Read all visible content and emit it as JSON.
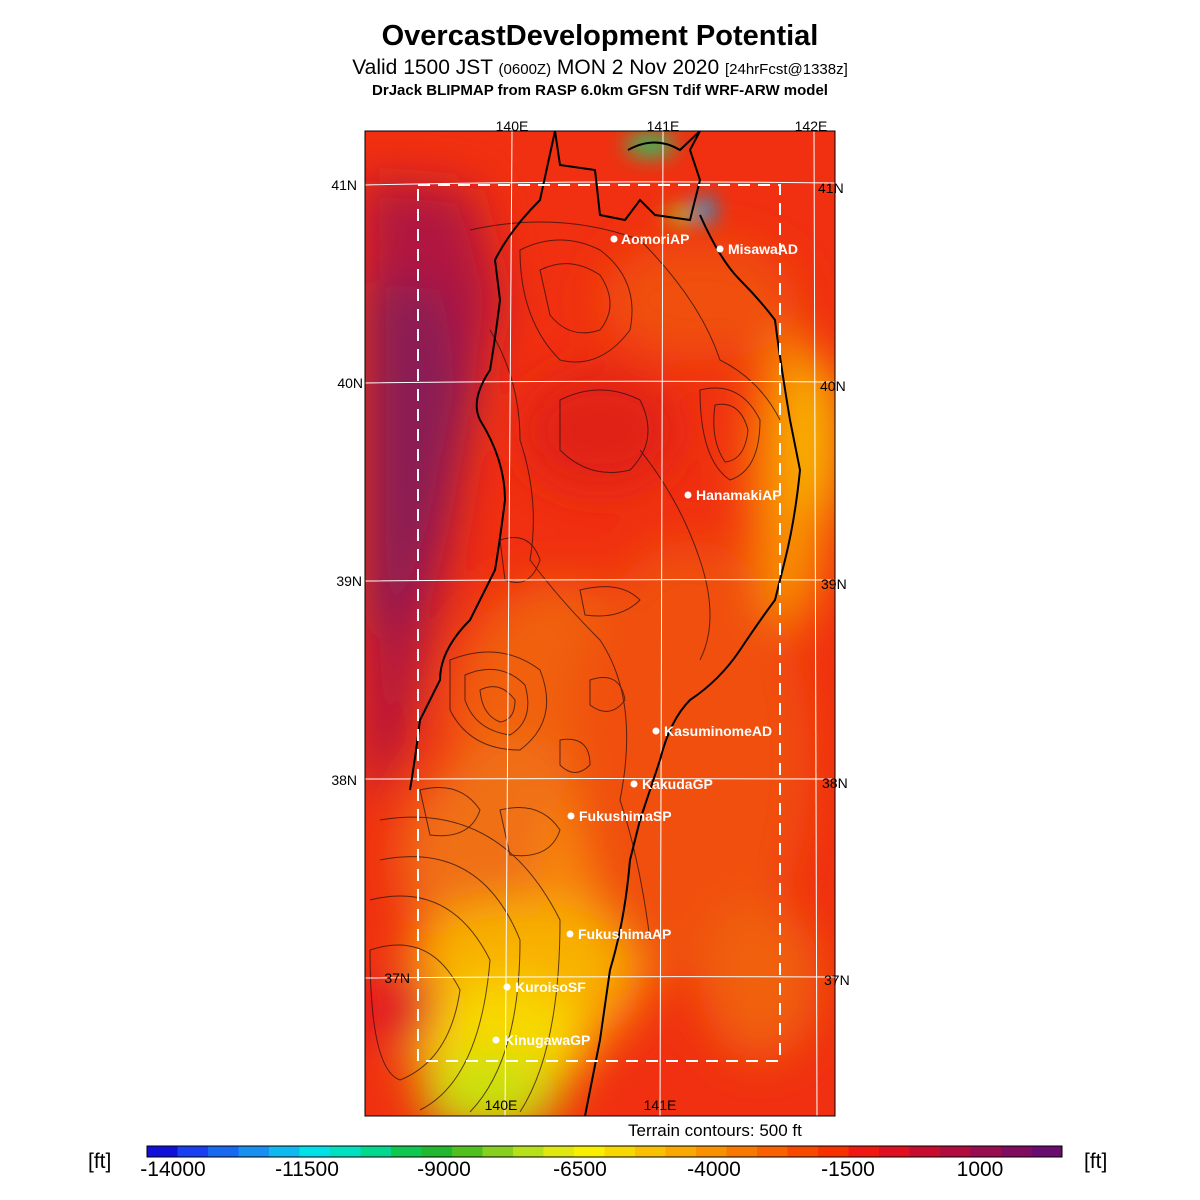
{
  "title": "OvercastDevelopment Potential",
  "subtitle": {
    "part1": "Valid 1500 JST ",
    "part2": "(0600Z)",
    "part3": " MON 2 Nov 2020 ",
    "part4": "[24hrFcst@1338z]"
  },
  "model_line": "DrJack BLIPMAP from RASP 6.0km GFSN Tdif WRF-ARW model",
  "map": {
    "lon_top": [
      "140E",
      "141E",
      "142E"
    ],
    "lon_bottom": [
      "140E",
      "141E"
    ],
    "lat_left": [
      "41N",
      "40N",
      "39N",
      "38N",
      "37N"
    ],
    "lat_right": [
      "41N",
      "40N",
      "39N",
      "38N",
      "37N"
    ],
    "stations": [
      "AomoriAP",
      "MisawaAD",
      "HanamakiAP",
      "KasuminomeAD",
      "KakudaGP",
      "FukushimaSP",
      "FukushimaAP",
      "KuroisoSF",
      "KinugawaGP"
    ]
  },
  "terrain_note": "Terrain contours: 500 ft",
  "colorbar": {
    "unit_label": "[ft]",
    "ticks": [
      "-14000",
      "-11500",
      "-9000",
      "-6500",
      "-4000",
      "-1500",
      "1000"
    ],
    "colors": [
      "#1010d8",
      "#1840f0",
      "#1868f0",
      "#1890f0",
      "#10b8f0",
      "#00e0e8",
      "#00e0c0",
      "#00d890",
      "#10c850",
      "#20b830",
      "#50c020",
      "#88d020",
      "#b8e018",
      "#e0e810",
      "#f8f000",
      "#f8d800",
      "#f8c000",
      "#f8a800",
      "#f89000",
      "#f87800",
      "#f86000",
      "#f84800",
      "#f83000",
      "#f01810",
      "#e01020",
      "#c80c30",
      "#b00c40",
      "#980c50",
      "#800c60",
      "#680c70"
    ]
  }
}
